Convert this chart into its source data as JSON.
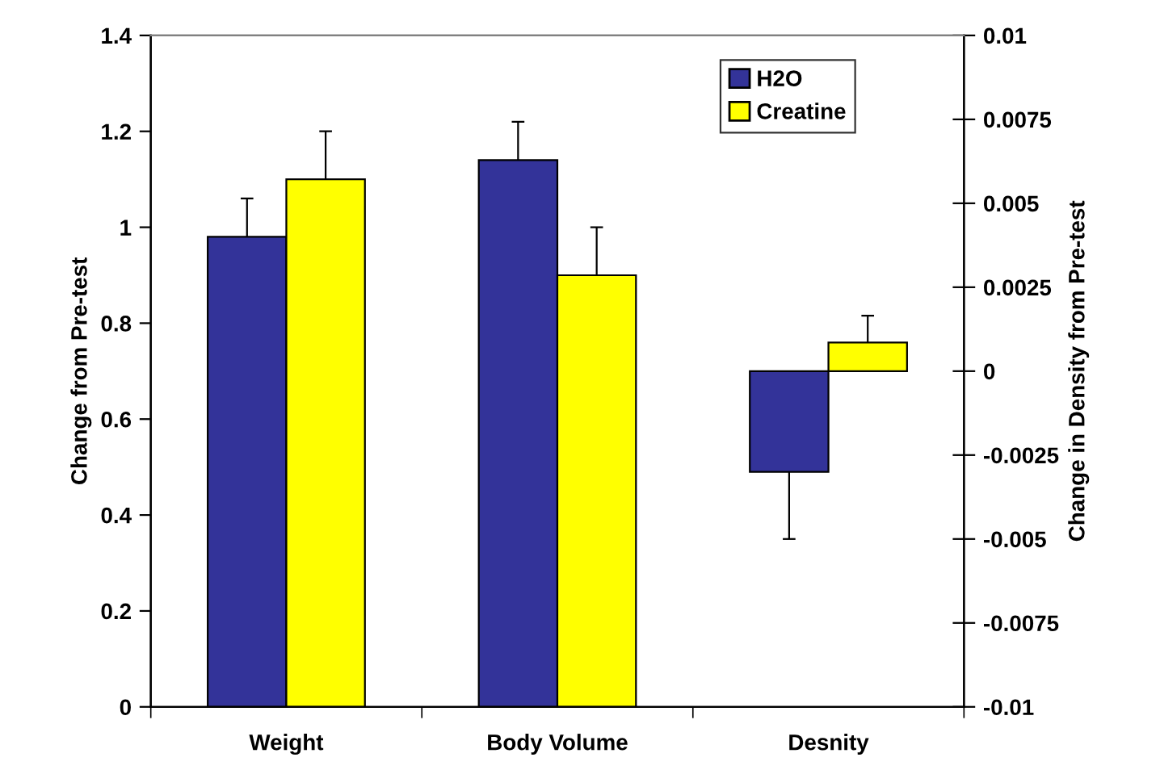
{
  "chart_data": {
    "type": "bar",
    "ylabel": "Change from Pre-test",
    "y2label": "Change in Density from Pre-test",
    "categories": [
      "Weight",
      "Body Volume",
      "Desnity"
    ],
    "series": [
      {
        "name": "H2O",
        "color": "#333399",
        "values": [
          0.98,
          1.14,
          null
        ],
        "errors": [
          [
            0.98,
            1.06
          ],
          [
            1.14,
            1.22
          ],
          null
        ]
      },
      {
        "name": "Creatine",
        "color": "#ffff00",
        "values": [
          1.1,
          0.9,
          null
        ],
        "errors": [
          [
            1.1,
            1.2
          ],
          [
            0.9,
            1.0
          ],
          null
        ]
      },
      {
        "color": "#333399",
        "axis": "y2",
        "values": [
          null,
          null,
          -0.003
        ],
        "errors": [
          null,
          null,
          [
            -0.005,
            -0.003
          ]
        ]
      },
      {
        "color": "#ffff00",
        "axis": "y2",
        "values": [
          null,
          null,
          0.00085
        ],
        "errors": [
          null,
          null,
          [
            0.00085,
            0.00165
          ]
        ]
      }
    ],
    "ylim": [
      0,
      1.4
    ],
    "yticks": [
      0,
      0.2,
      0.4,
      0.6,
      0.8,
      1,
      1.2,
      1.4
    ],
    "y2lim": [
      -0.01,
      0.01
    ],
    "y2ticks": [
      -0.01,
      -0.0075,
      -0.005,
      -0.0025,
      0,
      0.0025,
      0.005,
      0.0075,
      0.01
    ],
    "grid": false,
    "legend": "top right"
  }
}
